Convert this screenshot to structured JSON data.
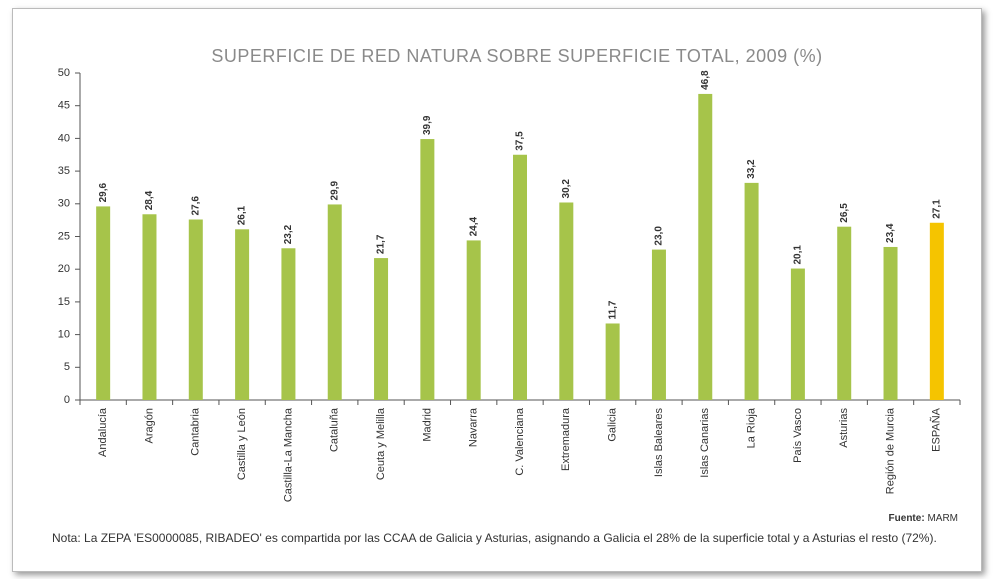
{
  "chart_data": {
    "type": "bar",
    "title": "SUPERFICIE DE RED NATURA SOBRE SUPERFICIE TOTAL, 2009 (%)",
    "categories": [
      "Andalucía",
      "Aragón",
      "Cantabria",
      "Castilla y León",
      "Castilla-La Mancha",
      "Cataluña",
      "Ceuta y Melilla",
      "Madrid",
      "Navarra",
      "C. Valenciana",
      "Extremadura",
      "Galicia",
      "Islas Baleares",
      "Islas Canarias",
      "La Rioja",
      "País Vasco",
      "Asturias",
      "Región de Murcia",
      "ESPAÑA"
    ],
    "values": [
      29.6,
      28.4,
      27.6,
      26.1,
      23.2,
      29.9,
      21.7,
      39.9,
      24.4,
      37.5,
      30.2,
      11.7,
      23.0,
      46.8,
      33.2,
      20.1,
      26.5,
      23.4,
      27.1
    ],
    "value_labels": [
      "29,6",
      "28,4",
      "27,6",
      "26,1",
      "23,2",
      "29,9",
      "21,7",
      "39,9",
      "24,4",
      "37,5",
      "30,2",
      "11,7",
      "23,0",
      "46,8",
      "33,2",
      "20,1",
      "26,5",
      "23,4",
      "27,1"
    ],
    "colors": [
      "#a6c44a",
      "#a6c44a",
      "#a6c44a",
      "#a6c44a",
      "#a6c44a",
      "#a6c44a",
      "#a6c44a",
      "#a6c44a",
      "#a6c44a",
      "#a6c44a",
      "#a6c44a",
      "#a6c44a",
      "#a6c44a",
      "#a6c44a",
      "#a6c44a",
      "#a6c44a",
      "#a6c44a",
      "#a6c44a",
      "#f5c400"
    ],
    "ylim": [
      0,
      50
    ],
    "yticks": [
      0,
      5,
      10,
      15,
      20,
      25,
      30,
      35,
      40,
      45,
      50
    ],
    "grid": false,
    "source_label": "Fuente:",
    "source": "MARM",
    "note": "Nota: La ZEPA 'ES0000085, RIBADEO' es compartida por las CCAA de Galicia y Asturias, asignando a Galicia el 28% de la superficie total y a Asturias el resto (72%)."
  }
}
